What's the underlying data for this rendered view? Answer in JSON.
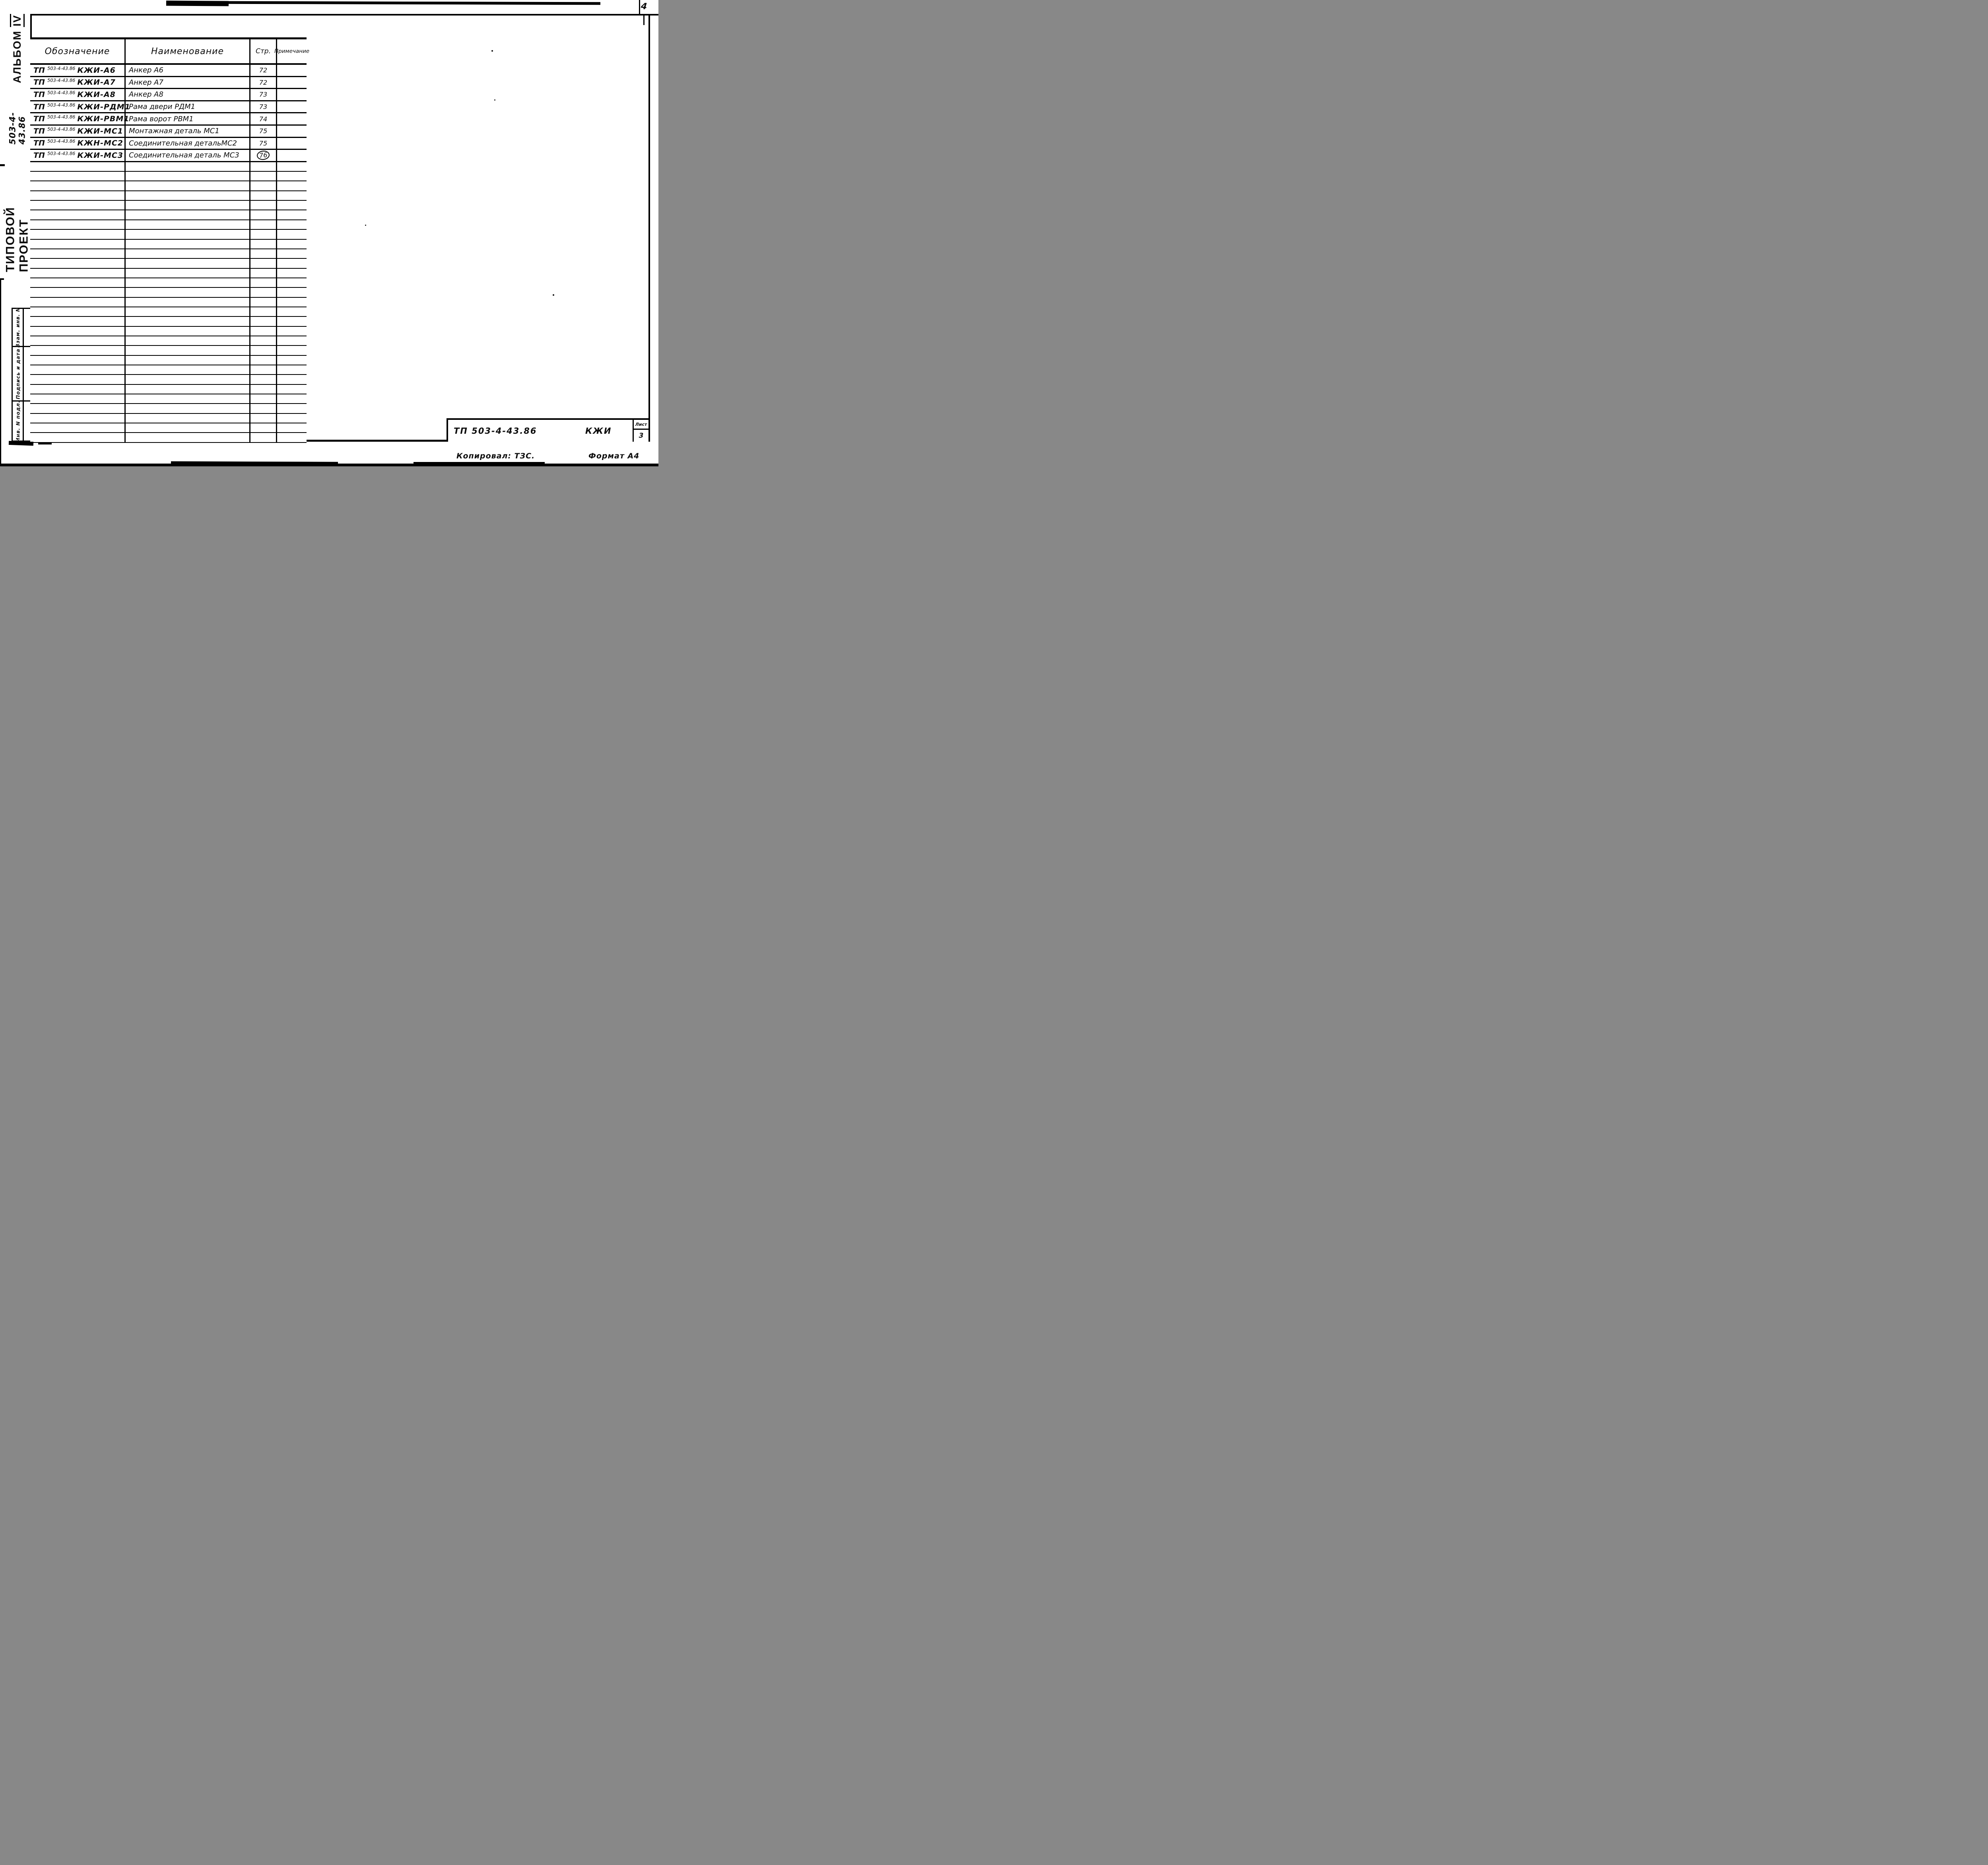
{
  "corner": {
    "page_number": "4"
  },
  "side_title": {
    "project_type": "ТИПОВОЙ ПРОЕКТ",
    "project_number": "503-4-43.86",
    "album_label": "АЛЬБОМ",
    "album_roman": "IV"
  },
  "table": {
    "headers": {
      "designation": "Обозначение",
      "name": "Наименование",
      "page": "Стр.",
      "note": "Примечание"
    },
    "rows": [
      {
        "prefix": "ТП",
        "code": "503-4-43.86",
        "mark": "КЖИ-А6",
        "name": "Анкер А6",
        "page": "72",
        "circled": false,
        "note": ""
      },
      {
        "prefix": "ТП",
        "code": "503-4-43.86",
        "mark": "КЖИ-А7",
        "name": "Анкер А7",
        "page": "72",
        "circled": false,
        "note": ""
      },
      {
        "prefix": "ТП",
        "code": "503-4-43.86",
        "mark": "КЖИ-А8",
        "name": "Анкер А8",
        "page": "73",
        "circled": false,
        "note": ""
      },
      {
        "prefix": "ТП",
        "code": "503-4-43.86",
        "mark": "КЖИ-РДМ1",
        "name": "Рама двери РДМ1",
        "page": "73",
        "circled": false,
        "note": ""
      },
      {
        "prefix": "ТП",
        "code": "503-4-43.86",
        "mark": "КЖИ-РВМ1",
        "name": "Рама ворот РВМ1",
        "page": "74",
        "circled": false,
        "note": ""
      },
      {
        "prefix": "ТП",
        "code": "503-4-43.86",
        "mark": "КЖИ-МС1",
        "name": "Монтажная деталь МС1",
        "page": "75",
        "circled": false,
        "note": ""
      },
      {
        "prefix": "ТП",
        "code": "503-4-43.86",
        "mark": "КЖН-МС2",
        "name": "Соединительная детальМС2",
        "page": "75",
        "circled": false,
        "note": ""
      },
      {
        "prefix": "ТП",
        "code": "503-4-43.86",
        "mark": "КЖИ-МС3",
        "name": "Соединительная деталь МС3",
        "page": "76",
        "circled": true,
        "note": ""
      }
    ],
    "empty_row_count": 29
  },
  "stamp_column": {
    "cells": [
      "Взам. инв. N",
      "Подпись и дата",
      "Инв. N подл."
    ]
  },
  "title_block": {
    "document": "ТП 503-4-43.86",
    "mark": "КЖИ",
    "sheet_label": "Лист",
    "sheet_number": "3"
  },
  "footer": {
    "copied_by": "Копировал: ТЗС.",
    "format": "Формат А4"
  }
}
